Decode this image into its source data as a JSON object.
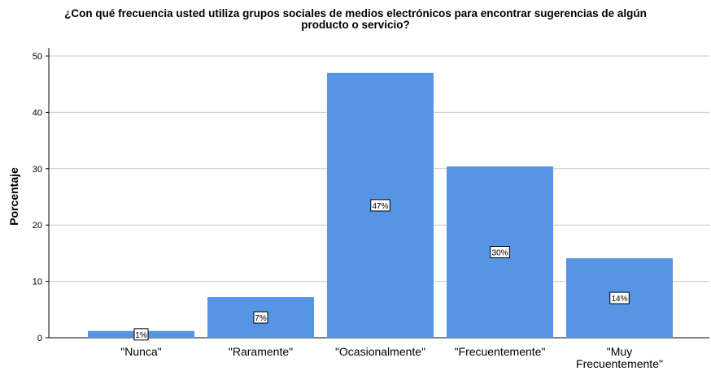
{
  "chart_data": {
    "type": "bar",
    "title": "¿Con qué frecuencia usted utiliza grupos sociales de medios electrónicos para encontrar sugerencias de algún producto o servicio?",
    "y_label": "Porcentaje",
    "categories": [
      "\"Nunca\"",
      "\"Raramente\"",
      "\"Ocasionalmente\"",
      "\"Frecuentemente\"",
      "\"Muy Frecuentemente\""
    ],
    "values": [
      1.2,
      7.2,
      47.0,
      30.4,
      14.1
    ],
    "value_labels": [
      "1%",
      "7%",
      "47%",
      "30%",
      "14%"
    ],
    "color": "#5595e3",
    "ylim": [
      0,
      50
    ],
    "yticks": [
      0,
      10,
      20,
      30,
      40,
      50
    ],
    "grid": true
  }
}
